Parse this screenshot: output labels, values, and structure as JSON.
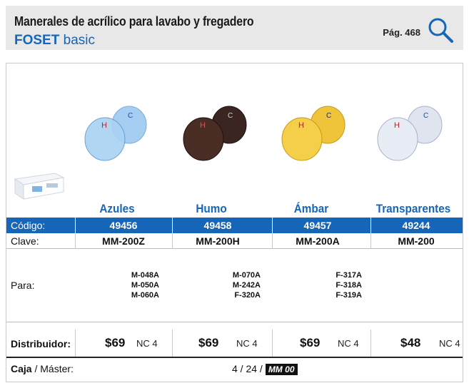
{
  "header": {
    "title": "Manerales de acrílico para lavabo y fregadero",
    "brand_bold": "FOSET",
    "brand_rest": " basic",
    "page_ref": "Pág. 468"
  },
  "products": [
    {
      "name": "Azules",
      "codigo": "49456",
      "clave": "MM-200Z",
      "para": [
        "M-048A",
        "M-050A",
        "M-060A"
      ],
      "price": "$69",
      "nc": "NC 4",
      "color": "#8fc3ef"
    },
    {
      "name": "Humo",
      "codigo": "49458",
      "clave": "MM-200H",
      "para": [
        "M-070A",
        "M-242A",
        "F-320A"
      ],
      "price": "$69",
      "nc": "NC 4",
      "color": "#4a2e26"
    },
    {
      "name": "Ámbar",
      "codigo": "49457",
      "clave": "MM-200A",
      "para": [
        "F-317A",
        "F-318A",
        "F-319A"
      ],
      "price": "$69",
      "nc": "NC 4",
      "color": "#f0c43a"
    },
    {
      "name": "Transparentes",
      "codigo": "49244",
      "clave": "MM-200",
      "para": [],
      "price": "$48",
      "nc": "NC 4",
      "color": "#dfe4ef"
    }
  ],
  "labels": {
    "codigo": "Código:",
    "clave": "Clave:",
    "para": "Para:",
    "distribuidor": "Distribuidor:",
    "caja_bold": "Caja",
    "caja_rest": " / Máster:"
  },
  "caja": {
    "value": "4 / 24 /",
    "tag": "MM 00"
  },
  "colors": {
    "accent": "#1565b8",
    "header_bg": "#e8e8e8"
  }
}
